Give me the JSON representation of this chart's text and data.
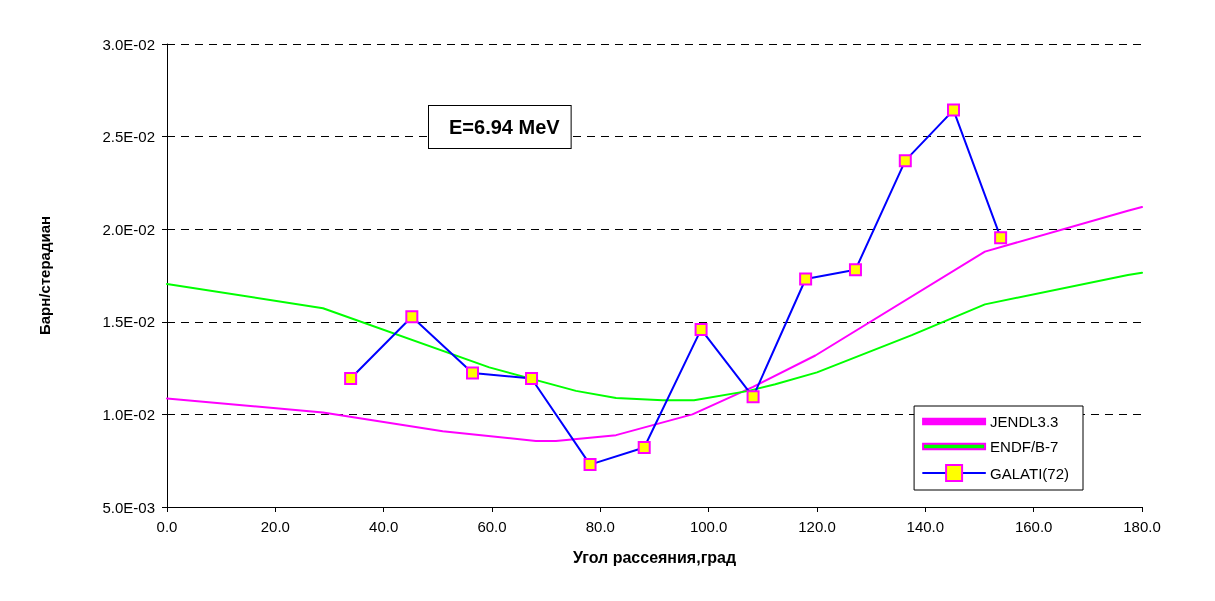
{
  "chart_data": {
    "type": "line",
    "xlabel": "Угол рассеяния,град",
    "ylabel": "Барн/стерадиан",
    "annotations": [
      "E=6.94 MeV"
    ],
    "xlim": [
      0,
      180
    ],
    "xticks": [
      {
        "value": 0,
        "label": "0.0"
      },
      {
        "value": 20,
        "label": "20.0"
      },
      {
        "value": 40,
        "label": "40.0"
      },
      {
        "value": 60,
        "label": "60.0"
      },
      {
        "value": 80,
        "label": "80.0"
      },
      {
        "value": 100,
        "label": "100.0"
      },
      {
        "value": 120,
        "label": "120.0"
      },
      {
        "value": 140,
        "label": "140.0"
      },
      {
        "value": 160,
        "label": "160.0"
      },
      {
        "value": 180,
        "label": "180.0"
      }
    ],
    "ylim": [
      0.005,
      0.03
    ],
    "yticks": [
      {
        "value": 0.005,
        "label": "5.0E-03"
      },
      {
        "value": 0.01,
        "label": "1.0E-02"
      },
      {
        "value": 0.015,
        "label": "1.5E-02"
      },
      {
        "value": 0.02,
        "label": "2.0E-02"
      },
      {
        "value": 0.025,
        "label": "2.5E-02"
      },
      {
        "value": 0.03,
        "label": "3.0E-02"
      }
    ],
    "grid": "y",
    "legend": "bottom right",
    "line_style": "solid",
    "series": [
      {
        "name": "JENDL3.3",
        "color": "#ff00ff",
        "marker": "none",
        "x": [
          0,
          28.8,
          50.9,
          68.1,
          71.8,
          82.9,
          97.0,
          108.2,
          119.7,
          151.0,
          177.4,
          180
        ],
        "values": [
          0.01086,
          0.0101,
          0.00909,
          0.00857,
          0.00857,
          0.00888,
          0.01,
          0.01149,
          0.01318,
          0.01879,
          0.021,
          0.0212
        ]
      },
      {
        "name": "ENDF/B-7",
        "color": "#00ff00",
        "marker": "none",
        "x": [
          0,
          28.8,
          59.5,
          75.5,
          82.9,
          91.5,
          97.3,
          107.4,
          112.3,
          120.0,
          137.5,
          151.0,
          177.4,
          180
        ],
        "values": [
          0.01704,
          0.01573,
          0.01254,
          0.01127,
          0.01089,
          0.01077,
          0.01077,
          0.01127,
          0.01163,
          0.01227,
          0.01428,
          0.01594,
          0.01753,
          0.01765
        ]
      },
      {
        "name": "GALATI(72)",
        "color": "#0000ff",
        "marker": "square",
        "x": [
          33.9,
          45.2,
          56.4,
          67.3,
          78.1,
          88.1,
          98.6,
          108.2,
          117.9,
          127.1,
          136.3,
          145.2,
          153.9
        ],
        "values": [
          0.01194,
          0.01527,
          0.01224,
          0.01194,
          0.00729,
          0.00821,
          0.01459,
          0.01095,
          0.01731,
          0.01781,
          0.0237,
          0.02643,
          0.01954
        ]
      }
    ]
  }
}
